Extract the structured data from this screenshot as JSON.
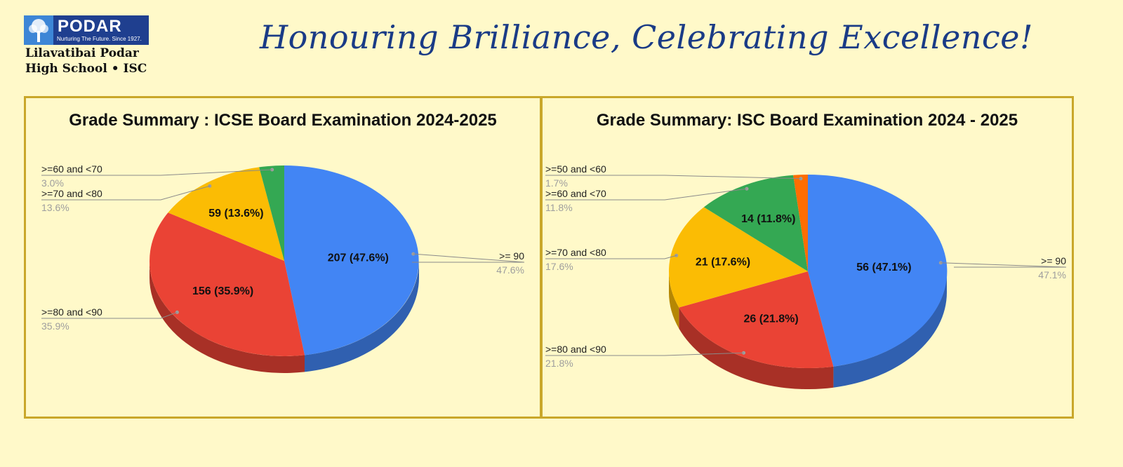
{
  "header": {
    "logo_brand": "PODAR",
    "logo_tagline": "Nurturing The Future. Since 1927.",
    "logo_line1": "Lilavatibai Podar",
    "logo_line2": "High School • ISC",
    "headline": "Honouring Brilliance, Celebrating Excellence!"
  },
  "colors": {
    "blue": "#4285f4",
    "red": "#ea4335",
    "yellow": "#fbbc04",
    "green": "#34a853",
    "orange": "#ff6d01",
    "border": "#c9a72a",
    "background": "#fff9c9"
  },
  "chart_data": [
    {
      "type": "pie",
      "title": "Grade Summary : ICSE Board Examination 2024-2025",
      "slices": [
        {
          "label": ">= 90",
          "value": 207,
          "percent": "47.6%",
          "data_label": "207 (47.6%)",
          "color": "#4285f4"
        },
        {
          "label": ">=80 and <90",
          "value": 156,
          "percent": "35.9%",
          "data_label": "156 (35.9%)",
          "color": "#ea4335"
        },
        {
          "label": ">=70 and <80",
          "value": 59,
          "percent": "13.6%",
          "data_label": "59 (13.6%)",
          "color": "#fbbc04"
        },
        {
          "label": ">=60 and <70",
          "value": 13,
          "percent": "3.0%",
          "data_label": "",
          "color": "#34a853"
        }
      ]
    },
    {
      "type": "pie",
      "title": "Grade Summary: ISC Board Examination 2024 - 2025",
      "slices": [
        {
          "label": ">= 90",
          "value": 56,
          "percent": "47.1%",
          "data_label": "56 (47.1%)",
          "color": "#4285f4"
        },
        {
          "label": ">=80 and <90",
          "value": 26,
          "percent": "21.8%",
          "data_label": "26 (21.8%)",
          "color": "#ea4335"
        },
        {
          "label": ">=70 and <80",
          "value": 21,
          "percent": "17.6%",
          "data_label": "21 (17.6%)",
          "color": "#fbbc04"
        },
        {
          "label": ">=60 and <70",
          "value": 14,
          "percent": "11.8%",
          "data_label": "14 (11.8%)",
          "color": "#34a853"
        },
        {
          "label": ">=50 and <60",
          "value": 2,
          "percent": "1.7%",
          "data_label": "",
          "color": "#ff6d01"
        }
      ]
    }
  ]
}
